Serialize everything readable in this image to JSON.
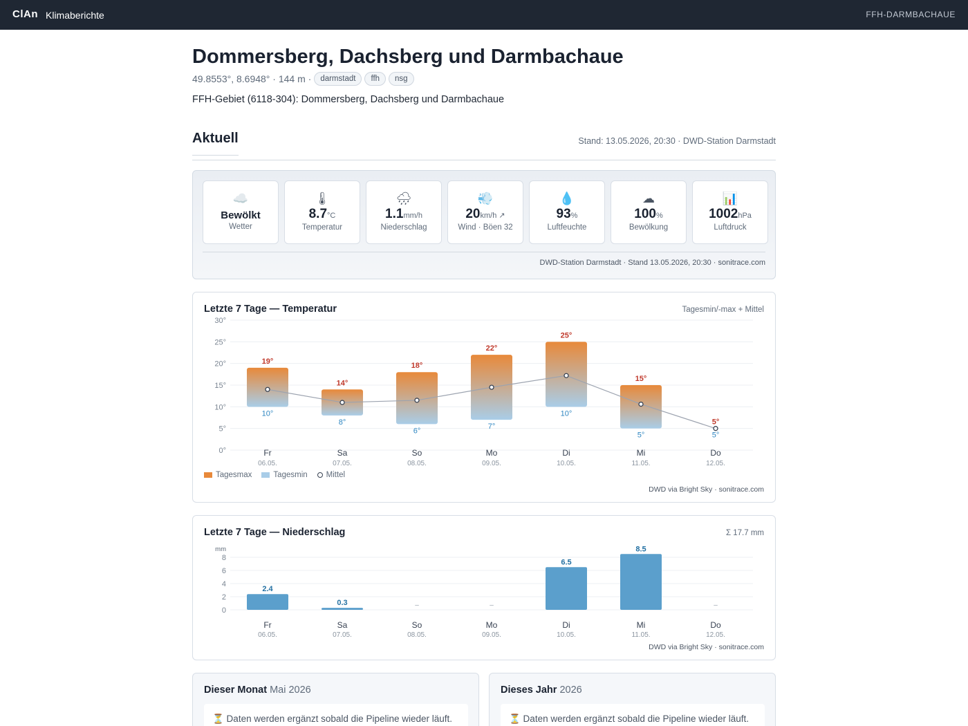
{
  "topbar": {
    "brand": "ClAn",
    "nav": "Klimaberichte",
    "right": "FFH-DARMBACHAUE"
  },
  "page": {
    "title": "Dommersberg, Dachsberg und Darmbachaue",
    "meta": "49.8553°, 8.6948° · 144 m ·",
    "tags": [
      "darmstadt",
      "ffh",
      "nsg"
    ],
    "description": "FFH-Gebiet (6118-304): Dommersberg, Dachsberg und Darmbachaue"
  },
  "current": {
    "section_title": "Aktuell",
    "stand": "Stand: 13.05.2026, 20:30 · DWD-Station Darmstadt",
    "tiles": [
      {
        "icon": "cloud-icon",
        "glyph": "☁️",
        "value": "Bewölkt",
        "unit": "",
        "label": "Wetter"
      },
      {
        "icon": "thermometer-icon",
        "glyph": "🌡",
        "value": "8.7",
        "unit": "°C",
        "label": "Temperatur"
      },
      {
        "icon": "rain-cloud-icon",
        "glyph": "🌧",
        "value": "1.1",
        "unit": "mm/h",
        "label": "Niederschlag"
      },
      {
        "icon": "wind-icon",
        "glyph": "💨",
        "value": "20",
        "unit": "km/h ↗",
        "label": "Wind · Böen 32"
      },
      {
        "icon": "droplet-icon",
        "glyph": "💧",
        "value": "93",
        "unit": "%",
        "label": "Luftfeuchte"
      },
      {
        "icon": "cloud-cover-icon",
        "glyph": "☁",
        "value": "100",
        "unit": "%",
        "label": "Bewölkung"
      },
      {
        "icon": "bar-chart-icon",
        "glyph": "📊",
        "value": "1002",
        "unit": "hPa",
        "label": "Luftdruck"
      }
    ],
    "footer": "DWD-Station Darmstadt · Stand 13.05.2026, 20:30 · sonitrace.com"
  },
  "temp_chart": {
    "title": "Letzte 7 Tage — Temperatur",
    "subtitle": "Tagesmin/-max + Mittel",
    "legend": {
      "max": "Tagesmax",
      "min": "Tagesmin",
      "mean": "Mittel"
    },
    "footer": "DWD via Bright Sky · sonitrace.com"
  },
  "precip_chart": {
    "title": "Letzte 7 Tage — Niederschlag",
    "subtitle": "Σ 17.7 mm",
    "footer": "DWD via Bright Sky · sonitrace.com"
  },
  "chart_data": [
    {
      "type": "bar",
      "title": "Letzte 7 Tage — Temperatur",
      "categories": [
        "Fr",
        "Sa",
        "So",
        "Mo",
        "Di",
        "Mi",
        "Do"
      ],
      "dates": [
        "06.05.",
        "07.05.",
        "08.05.",
        "09.05.",
        "10.05.",
        "11.05.",
        "12.05."
      ],
      "ylim": [
        0,
        30
      ],
      "yticks": [
        0,
        5,
        10,
        15,
        20,
        25,
        30
      ],
      "tick_suffix": "°",
      "series": [
        {
          "name": "Tagesmax",
          "values": [
            19,
            14,
            18,
            22,
            25,
            15,
            5
          ]
        },
        {
          "name": "Tagesmin",
          "values": [
            10,
            8,
            6,
            7,
            10,
            5,
            5
          ]
        },
        {
          "name": "Mittel",
          "values": [
            14,
            11,
            11.5,
            14.5,
            17.2,
            10.6,
            5
          ]
        }
      ],
      "colors": {
        "max": "#e8893a",
        "min": "#a9cde8",
        "mean_line": "#9ca3af",
        "max_label": "#c0392b",
        "min_label": "#2e86c1"
      }
    },
    {
      "type": "bar",
      "title": "Letzte 7 Tage — Niederschlag",
      "ylabel": "mm",
      "categories": [
        "Fr",
        "Sa",
        "So",
        "Mo",
        "Di",
        "Mi",
        "Do"
      ],
      "dates": [
        "06.05.",
        "07.05.",
        "08.05.",
        "09.05.",
        "10.05.",
        "11.05.",
        "12.05."
      ],
      "ylim": [
        0,
        8
      ],
      "yticks": [
        0,
        2,
        4,
        6,
        8
      ],
      "values": [
        2.4,
        0.3,
        null,
        null,
        6.5,
        8.5,
        null
      ],
      "labels": [
        "2.4",
        "0.3",
        "–",
        "–",
        "6.5",
        "8.5",
        "–"
      ],
      "colors": {
        "bar": "#5b9fcc",
        "label": "#2471a3"
      }
    }
  ],
  "month": {
    "title": "Dieser Monat",
    "period": "Mai 2026",
    "pending": "⏳ Daten werden ergänzt sobald die Pipeline wieder läuft."
  },
  "year": {
    "title": "Dieses Jahr",
    "period": "2026",
    "pending": "⏳ Daten werden ergänzt sobald die Pipeline wieder läuft."
  }
}
